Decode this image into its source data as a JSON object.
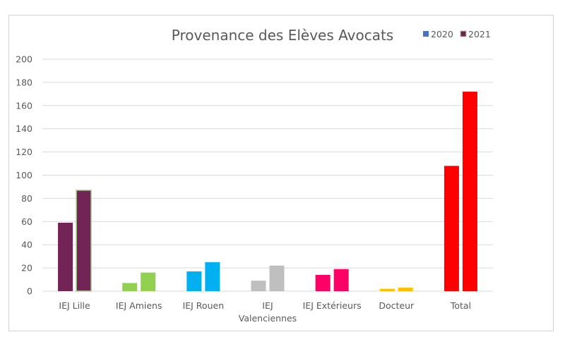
{
  "chart_data": {
    "type": "bar",
    "title": "Provenance des Elèves Avocats",
    "xlabel": "",
    "ylabel": "",
    "ylim": [
      0,
      200
    ],
    "yticks": [
      "0",
      "20",
      "40",
      "60",
      "80",
      "100",
      "120",
      "140",
      "160",
      "180",
      "200"
    ],
    "ytick_values": [
      0,
      20,
      40,
      60,
      80,
      100,
      120,
      140,
      160,
      180,
      200
    ],
    "grid": true,
    "legend_position": "top-right",
    "categories": [
      [
        "IEJ Lille"
      ],
      [
        "IEJ Amiens"
      ],
      [
        "IEJ Rouen"
      ],
      [
        "IEJ",
        "Valenciennes"
      ],
      [
        "IEJ Extérieurs"
      ],
      [
        "Docteur"
      ],
      [
        "Total"
      ]
    ],
    "category_colors": [
      "#722457",
      "#92d050",
      "#00b0f0",
      "#bfbfbf",
      "#ff0066",
      "#ffc000",
      "#ff0000"
    ],
    "series": [
      {
        "name": "2020",
        "values": [
          59,
          7,
          17,
          9,
          14,
          2,
          108
        ],
        "legend_color": "#4472c4"
      },
      {
        "name": "2021",
        "values": [
          87,
          16,
          25,
          22,
          19,
          3,
          172
        ],
        "legend_color": "#722457"
      }
    ]
  }
}
